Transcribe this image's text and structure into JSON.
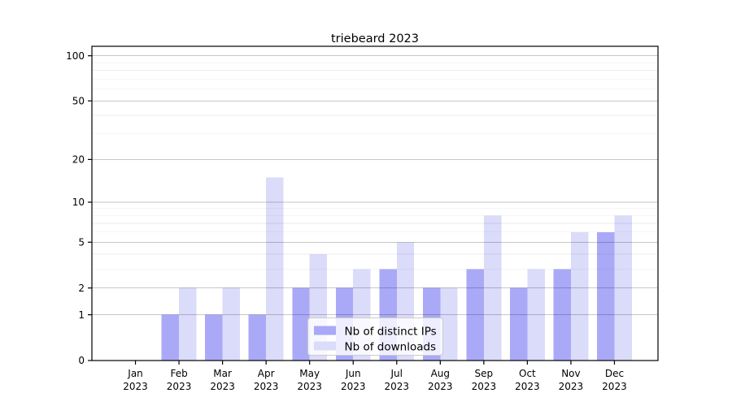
{
  "chart_data": {
    "type": "bar",
    "title": "triebeard 2023",
    "categories": [
      "Jan 2023",
      "Feb 2023",
      "Mar 2023",
      "Apr 2023",
      "May 2023",
      "Jun 2023",
      "Jul 2023",
      "Aug 2023",
      "Sep 2023",
      "Oct 2023",
      "Nov 2023",
      "Dec 2023"
    ],
    "series": [
      {
        "name": "Nb of distinct IPs",
        "color": "#a9a9f7",
        "values": [
          0,
          1,
          1,
          1,
          2,
          2,
          3,
          2,
          3,
          2,
          3,
          6
        ]
      },
      {
        "name": "Nb of downloads",
        "color": "#dbdbfa",
        "values": [
          0,
          2,
          2,
          15,
          4,
          3,
          5,
          2,
          8,
          3,
          6,
          8
        ]
      }
    ],
    "xlabel": "",
    "ylabel": "",
    "y_scale": "log1p",
    "ylim": [
      0,
      115.6
    ],
    "y_major_ticks": [
      0,
      1,
      2,
      5,
      10,
      20,
      50,
      100
    ],
    "y_minor_gridlines": [
      3,
      4,
      6,
      7,
      8,
      9,
      30,
      40,
      60,
      70,
      80,
      90
    ],
    "grid": true,
    "legend_position": "inside lower-center-right",
    "colors": {
      "background": "#ffffff",
      "axis": "#000000",
      "major_grid": "rgba(0,0,0,0.22)",
      "minor_grid": "rgba(0,0,0,0.07)",
      "legend_bg": "#ffffff",
      "legend_border": "#cccccc"
    }
  }
}
